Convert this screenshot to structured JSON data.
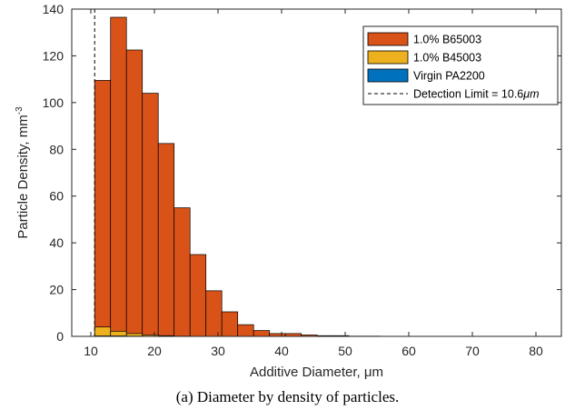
{
  "caption": "(a) Diameter by density of particles.",
  "chart_data": {
    "type": "bar",
    "xlabel": "Additive Diameter, μm",
    "ylabel": "Particle Density, mm",
    "ylabel_superscript": "-3",
    "xlim": [
      7,
      84
    ],
    "ylim": [
      0,
      140
    ],
    "xticks": [
      10,
      20,
      30,
      40,
      50,
      60,
      70,
      80
    ],
    "yticks": [
      0,
      20,
      40,
      60,
      80,
      100,
      120,
      140
    ],
    "grid": false,
    "legend_position": "top-right",
    "bin_width": 2.5,
    "bin_edges_start": 10.6,
    "series": [
      {
        "name": "1.0% B65003",
        "color": "#D95319",
        "values": [
          109.5,
          136.5,
          122.5,
          104,
          82.5,
          55,
          35,
          19.5,
          10.5,
          5,
          2.5,
          1.2,
          1.2,
          0.6,
          0.3,
          0.3,
          0.1,
          0.1,
          0.05,
          0.05,
          0.05,
          0.05,
          0.05,
          0.05,
          0.05,
          0.05,
          0.05,
          0.05
        ]
      },
      {
        "name": "1.0% B45003",
        "color": "#EDB120",
        "values": [
          4,
          2.2,
          1.2,
          0.6,
          0.3,
          0.1,
          0.05,
          0.05,
          0.05,
          0.05,
          0.05,
          0.05,
          0.05,
          0.05,
          0.05,
          0.05,
          0.05,
          0.05,
          0.05,
          0.05,
          0.05,
          0.05,
          0.05,
          0.05,
          0.05,
          0.05,
          0.05,
          0.05
        ]
      },
      {
        "name": "Virgin PA2200",
        "color": "#0072BD",
        "values": [
          0.2,
          0.2,
          0.1,
          0.05,
          0.05,
          0.05,
          0.05,
          0.05,
          0.05,
          0.05,
          0.05,
          0.05,
          0.05,
          0.05,
          0.05,
          0.05,
          0.05,
          0.05,
          0.05,
          0.05,
          0.05,
          0.05,
          0.05,
          0.05,
          0.05,
          0.05,
          0.05,
          0.05
        ]
      }
    ],
    "detection_limit": {
      "label": "Detection Limit = 10.6",
      "unit": "μm",
      "value": 10.6,
      "style": "dashed"
    }
  }
}
